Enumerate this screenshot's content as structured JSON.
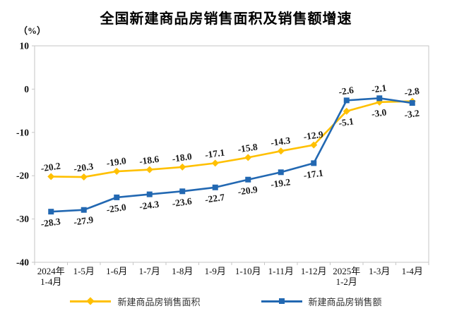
{
  "page": {
    "title": "全国新建商品房销售面积及销售额增速",
    "unit_label": "（%）"
  },
  "chart_data": {
    "type": "line",
    "title": "全国新建商品房销售面积及销售额增速",
    "ylabel": "%",
    "xlabel": "",
    "ylim": [
      -40,
      10
    ],
    "yticks": [
      10,
      0,
      -10,
      -20,
      -30,
      -40
    ],
    "grid": false,
    "legend_position": "bottom",
    "axis_color": "#c6c6c6",
    "label_color": "#1a1a1a",
    "categories": [
      "2024年\n1-4月",
      "1-5月",
      "1-6月",
      "1-7月",
      "1-8月",
      "1-9月",
      "1-10月",
      "1-11月",
      "1-12月",
      "2025年\n1-2月",
      "1-3月",
      "1-4月"
    ],
    "series": [
      {
        "name": "新建商品房销售面积",
        "color": "#FFC000",
        "marker": "diamond",
        "values": [
          -20.2,
          -20.3,
          -19.0,
          -18.6,
          -18.0,
          -17.1,
          -15.8,
          -14.3,
          -12.9,
          -5.1,
          -3.0,
          -2.8
        ],
        "label_side": [
          "above",
          "above",
          "above",
          "above",
          "above",
          "above",
          "above",
          "above",
          "above",
          "below",
          "below",
          "above"
        ]
      },
      {
        "name": "新建商品房销售额",
        "color": "#2268B2",
        "marker": "square",
        "values": [
          -28.3,
          -27.9,
          -25.0,
          -24.3,
          -23.6,
          -22.7,
          -20.9,
          -19.2,
          -17.1,
          -2.6,
          -2.1,
          -3.2
        ],
        "label_side": [
          "below",
          "below",
          "below",
          "below",
          "below",
          "below",
          "below",
          "below",
          "below",
          "above",
          "above",
          "below"
        ]
      }
    ]
  }
}
